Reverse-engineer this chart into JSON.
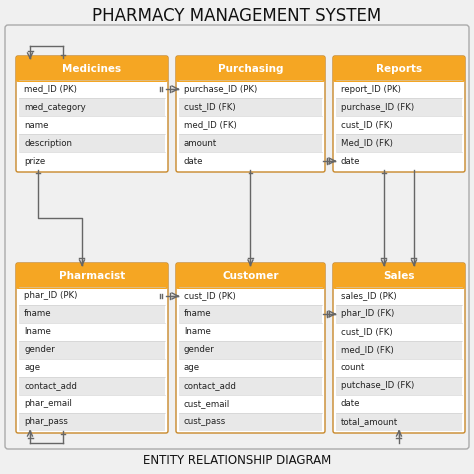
{
  "title": "PHARMACY MANAGEMENT SYSTEM",
  "subtitle": "ENTITY RELATIONSHIP DIAGRAM",
  "background_color": "#f0f0f0",
  "header_color": "#f5a623",
  "border_color": "#c8882a",
  "row_colors": [
    "#ffffff",
    "#e8e8e8"
  ],
  "text_color": "#222222",
  "line_color": "#666666",
  "outer_border": "#cccccc",
  "tables": [
    {
      "name": "Medicines",
      "col": 0,
      "row": 0,
      "fields": [
        "med_ID (PK)",
        "med_category",
        "name",
        "description",
        "prize"
      ]
    },
    {
      "name": "Purchasing",
      "col": 1,
      "row": 0,
      "fields": [
        "purchase_ID (PK)",
        "cust_ID (FK)",
        "med_ID (FK)",
        "amount",
        "date"
      ]
    },
    {
      "name": "Reports",
      "col": 2,
      "row": 0,
      "fields": [
        "report_ID (PK)",
        "purchase_ID (FK)",
        "cust_ID (FK)",
        "Med_ID (FK)",
        "date"
      ]
    },
    {
      "name": "Pharmacist",
      "col": 0,
      "row": 1,
      "fields": [
        "phar_ID (PK)",
        "fname",
        "lname",
        "gender",
        "age",
        "contact_add",
        "phar_email",
        "phar_pass"
      ]
    },
    {
      "name": "Customer",
      "col": 1,
      "row": 1,
      "fields": [
        "cust_ID (PK)",
        "fname",
        "lname",
        "gender",
        "age",
        "contact_add",
        "cust_email",
        "cust_pass"
      ]
    },
    {
      "name": "Sales",
      "col": 2,
      "row": 1,
      "fields": [
        "sales_ID (PK)",
        "phar_ID (FK)",
        "cust_ID (FK)",
        "med_ID (FK)",
        "count",
        "putchase_ID (FK)",
        "date",
        "total_amount"
      ]
    }
  ]
}
